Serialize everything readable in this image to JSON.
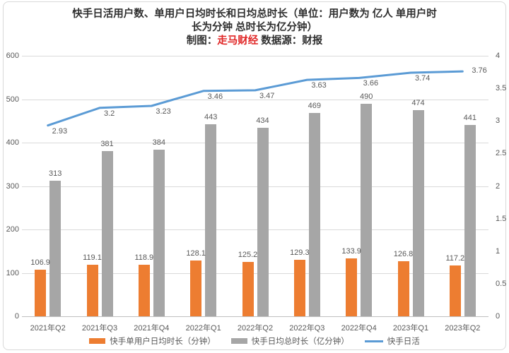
{
  "header": {
    "title_line1": "快手日活用户数、单用户日均时长和日均总时长（单位：用户数为 亿人 单用户时",
    "title_line2": "长为分钟 总时长为亿分钟）",
    "credit_prefix": "制图：",
    "credit_author": "走马财经",
    "credit_suffix": " 数据源：财报"
  },
  "colors": {
    "bar_user_time": "#ED7D31",
    "bar_total_time": "#A6A6A6",
    "dau_line": "#5B9BD5",
    "credit_red": "#E02424",
    "gridline": "#D9D9D9",
    "axis_line": "#BFBFBF",
    "label_text": "#595959"
  },
  "chart_data": {
    "type": "bar",
    "subtype": "bar+line combo, dual axis",
    "title": "快手日活用户数、单用户日均时长和日均总时长（单位：用户数为 亿人 单用户时长为分钟 总时长为亿分钟）",
    "categories": [
      "2021年Q2",
      "2021年Q3",
      "2021年Q4",
      "2022年Q1",
      "2022年Q2",
      "2022年Q3",
      "2022年Q4",
      "2023年Q1",
      "2023年Q2"
    ],
    "series": [
      {
        "name": "快手单用户日均时长（分钟）",
        "type": "bar",
        "axis": "left",
        "color": "#ED7D31",
        "values": [
          106.9,
          119.1,
          118.9,
          128.1,
          125.2,
          129.3,
          133.9,
          126.8,
          117.2
        ],
        "labels": [
          "106.9",
          "119.1",
          "118.9",
          "128.1",
          "125.2",
          "129.3",
          "133.9",
          "126.8",
          "117.2"
        ]
      },
      {
        "name": "快手日均总时长（亿分钟）",
        "type": "bar",
        "axis": "left",
        "color": "#A6A6A6",
        "values": [
          313,
          381,
          384,
          443,
          434,
          469,
          490,
          474,
          441
        ],
        "labels": [
          "313",
          "381",
          "384",
          "443",
          "434",
          "469",
          "490",
          "474",
          "441"
        ]
      },
      {
        "name": "快手日活",
        "type": "line",
        "axis": "right",
        "color": "#5B9BD5",
        "values": [
          2.93,
          3.2,
          3.23,
          3.46,
          3.47,
          3.63,
          3.66,
          3.74,
          3.76
        ],
        "labels": [
          "2.93",
          "3.2",
          "3.23",
          "3.46",
          "3.47",
          "3.63",
          "3.66",
          "3.74",
          "3.76"
        ]
      }
    ],
    "left_axis": {
      "min": 0,
      "max": 600,
      "step": 100,
      "ticks": [
        "0",
        "100",
        "200",
        "300",
        "400",
        "500",
        "600"
      ]
    },
    "right_axis": {
      "min": 0,
      "max": 4,
      "step": 0.5,
      "ticks": [
        "0",
        "0.5",
        "1",
        "1.5",
        "2",
        "2.5",
        "3",
        "3.5",
        "4"
      ]
    },
    "grid": true,
    "legend_position": "bottom"
  }
}
